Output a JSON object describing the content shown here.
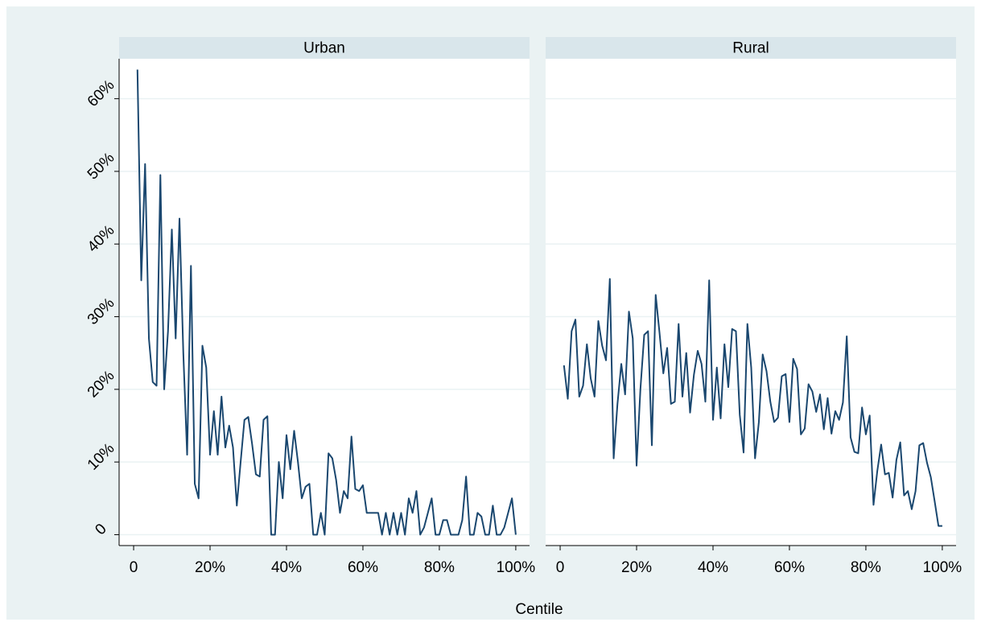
{
  "xlabel": "Centile",
  "chart_data": [
    {
      "type": "line",
      "title": "Urban",
      "color": "#1a476f",
      "x": [
        1,
        2,
        3,
        4,
        5,
        6,
        7,
        8,
        9,
        10,
        11,
        12,
        13,
        14,
        15,
        16,
        17,
        18,
        19,
        20,
        21,
        22,
        23,
        24,
        25,
        26,
        27,
        28,
        29,
        30,
        31,
        32,
        33,
        34,
        35,
        36,
        37,
        38,
        39,
        40,
        41,
        42,
        43,
        44,
        45,
        46,
        47,
        48,
        49,
        50,
        51,
        52,
        53,
        54,
        55,
        56,
        57,
        58,
        59,
        60,
        61,
        62,
        63,
        64,
        65,
        66,
        67,
        68,
        69,
        70,
        71,
        72,
        73,
        74,
        75,
        76,
        77,
        78,
        79,
        80,
        81,
        82,
        83,
        84,
        85,
        86,
        87,
        88,
        89,
        90,
        91,
        92,
        93,
        94,
        95,
        96,
        97,
        98,
        99,
        100
      ],
      "values": [
        64,
        35,
        51,
        27,
        21,
        20.5,
        49.5,
        20,
        28,
        42,
        27,
        43.5,
        25,
        11,
        37,
        7,
        5,
        26,
        23,
        11,
        17,
        11,
        19,
        12,
        15,
        12,
        4,
        10,
        15.8,
        16.2,
        12.5,
        8.3,
        8,
        15.8,
        16.3,
        0,
        0,
        10,
        5,
        13.7,
        9,
        14.3,
        10,
        5,
        6.6,
        7,
        0,
        0,
        3,
        0,
        11.2,
        10.5,
        7.5,
        3,
        6,
        5,
        13.5,
        6.3,
        6,
        6.8,
        3,
        3,
        3,
        3,
        0,
        3,
        0,
        3,
        0,
        3,
        0,
        5,
        3,
        6,
        0,
        1,
        3,
        5,
        0,
        0,
        2,
        2,
        0,
        0,
        0,
        2,
        8,
        0,
        0,
        3,
        2.5,
        0,
        0,
        4,
        0,
        0,
        1,
        3,
        5,
        0
      ],
      "xlim": [
        -3.8,
        103.6
      ],
      "ylim": [
        -1.5,
        65.5
      ],
      "xticks": [
        0,
        {
          "value": 20,
          "label": "20%"
        },
        {
          "value": 40,
          "label": "40%"
        },
        {
          "value": 60,
          "label": "60%"
        },
        {
          "value": 80,
          "label": "80%"
        },
        {
          "value": 100,
          "label": "100%"
        }
      ],
      "yticks": [
        0,
        {
          "value": 10,
          "label": "10%"
        },
        {
          "value": 20,
          "label": "20%"
        },
        {
          "value": 30,
          "label": "30%"
        },
        {
          "value": 40,
          "label": "40%"
        },
        {
          "value": 50,
          "label": "50%"
        },
        {
          "value": 60,
          "label": "60%"
        }
      ],
      "grid": true
    },
    {
      "type": "line",
      "title": "Rural",
      "color": "#1a476f",
      "x": [
        1,
        2,
        3,
        4,
        5,
        6,
        7,
        8,
        9,
        10,
        11,
        12,
        13,
        14,
        15,
        16,
        17,
        18,
        19,
        20,
        21,
        22,
        23,
        24,
        25,
        26,
        27,
        28,
        29,
        30,
        31,
        32,
        33,
        34,
        35,
        36,
        37,
        38,
        39,
        40,
        41,
        42,
        43,
        44,
        45,
        46,
        47,
        48,
        49,
        50,
        51,
        52,
        53,
        54,
        55,
        56,
        57,
        58,
        59,
        60,
        61,
        62,
        63,
        64,
        65,
        66,
        67,
        68,
        69,
        70,
        71,
        72,
        73,
        74,
        75,
        76,
        77,
        78,
        79,
        80,
        81,
        82,
        83,
        84,
        85,
        86,
        87,
        88,
        89,
        90,
        91,
        92,
        93,
        94,
        95,
        96,
        97,
        98,
        99,
        100
      ],
      "values": [
        23.3,
        18.7,
        28,
        29.6,
        19,
        20.5,
        26.2,
        21.5,
        19,
        29.4,
        26,
        24,
        35.2,
        10.5,
        18,
        23.5,
        19.3,
        30.7,
        27,
        9.5,
        20,
        27.5,
        28,
        12.3,
        33,
        27.8,
        22.2,
        25.7,
        18,
        18.3,
        29,
        19,
        25,
        16.8,
        22,
        25.3,
        23.5,
        18.3,
        35,
        15.8,
        23,
        16,
        26.2,
        20.3,
        28.3,
        28,
        16.5,
        11.3,
        29,
        23,
        10.5,
        15.5,
        24.8,
        22.5,
        18.3,
        15.5,
        16.1,
        21.8,
        22.1,
        15.5,
        24.2,
        22.8,
        13.8,
        14.6,
        20.7,
        19.7,
        16.9,
        19.3,
        14.5,
        18.8,
        13.9,
        17,
        15.8,
        18.2,
        27.3,
        13.4,
        11.4,
        11.2,
        17.5,
        13.8,
        16.4,
        4.1,
        8.8,
        12.4,
        8.3,
        8.5,
        5.1,
        10.3,
        12.7,
        5.4,
        6,
        3.5,
        6,
        12.3,
        12.6,
        9.9,
        7.9,
        4.6,
        1.2,
        1.2
      ],
      "xlim": [
        -3.8,
        103.6
      ],
      "ylim": [
        -1.5,
        65.5
      ],
      "xticks": [
        0,
        {
          "value": 20,
          "label": "20%"
        },
        {
          "value": 40,
          "label": "40%"
        },
        {
          "value": 60,
          "label": "60%"
        },
        {
          "value": 80,
          "label": "80%"
        },
        {
          "value": 100,
          "label": "100%"
        }
      ],
      "yticks": [
        0,
        10,
        20,
        30,
        40,
        50,
        60
      ],
      "grid": true
    }
  ]
}
